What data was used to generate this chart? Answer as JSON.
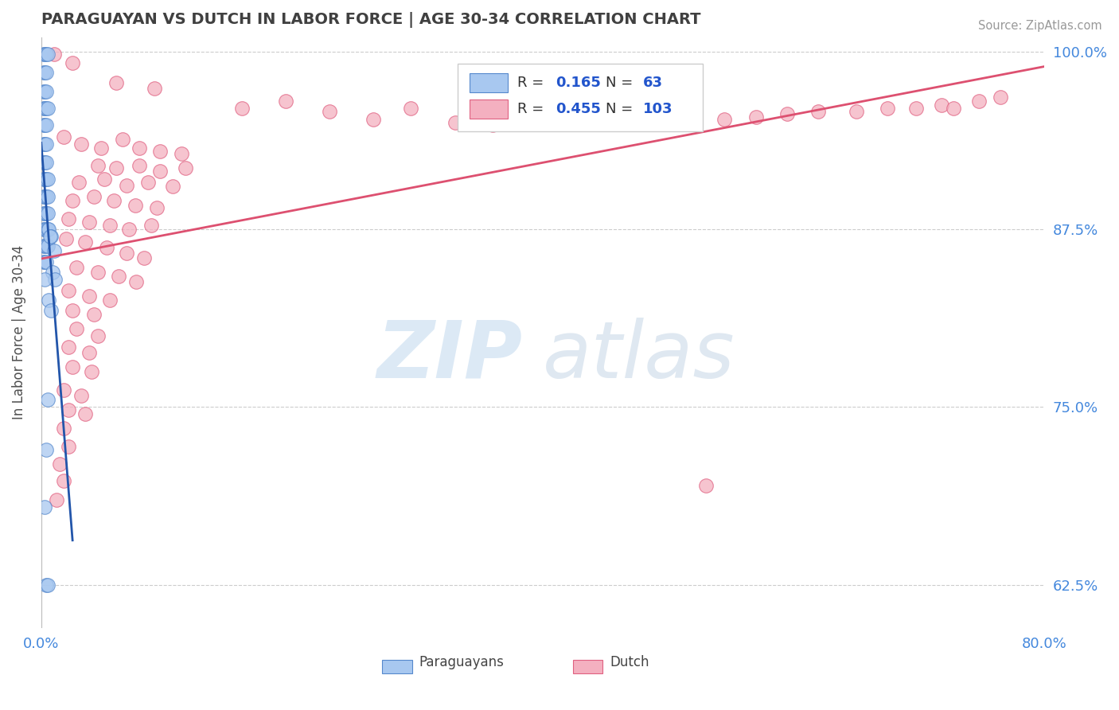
{
  "title": "PARAGUAYAN VS DUTCH IN LABOR FORCE | AGE 30-34 CORRELATION CHART",
  "source_text": "Source: ZipAtlas.com",
  "ylabel": "In Labor Force | Age 30-34",
  "xlim": [
    0.0,
    0.8
  ],
  "ylim": [
    0.595,
    1.01
  ],
  "xtick_labels": [
    "0.0%",
    "80.0%"
  ],
  "xtick_vals": [
    0.0,
    0.8
  ],
  "ytick_labels": [
    "62.5%",
    "75.0%",
    "87.5%",
    "100.0%"
  ],
  "ytick_vals": [
    0.625,
    0.75,
    0.875,
    1.0
  ],
  "blue_R": 0.165,
  "blue_N": 63,
  "pink_R": 0.455,
  "pink_N": 103,
  "blue_color": "#a8c8f0",
  "pink_color": "#f4b0c0",
  "blue_edge_color": "#5588cc",
  "pink_edge_color": "#e06080",
  "blue_line_color": "#2255aa",
  "pink_line_color": "#dd5070",
  "legend_blue_label": "Paraguayans",
  "legend_pink_label": "Dutch",
  "blue_scatter": [
    [
      0.002,
      0.998
    ],
    [
      0.003,
      0.998
    ],
    [
      0.004,
      0.998
    ],
    [
      0.005,
      0.998
    ],
    [
      0.002,
      0.985
    ],
    [
      0.003,
      0.985
    ],
    [
      0.004,
      0.985
    ],
    [
      0.002,
      0.972
    ],
    [
      0.003,
      0.972
    ],
    [
      0.004,
      0.972
    ],
    [
      0.002,
      0.96
    ],
    [
      0.003,
      0.96
    ],
    [
      0.004,
      0.96
    ],
    [
      0.005,
      0.96
    ],
    [
      0.002,
      0.948
    ],
    [
      0.003,
      0.948
    ],
    [
      0.004,
      0.948
    ],
    [
      0.002,
      0.935
    ],
    [
      0.003,
      0.935
    ],
    [
      0.004,
      0.935
    ],
    [
      0.002,
      0.922
    ],
    [
      0.003,
      0.922
    ],
    [
      0.004,
      0.922
    ],
    [
      0.002,
      0.91
    ],
    [
      0.003,
      0.91
    ],
    [
      0.004,
      0.91
    ],
    [
      0.005,
      0.91
    ],
    [
      0.002,
      0.898
    ],
    [
      0.003,
      0.898
    ],
    [
      0.004,
      0.898
    ],
    [
      0.005,
      0.898
    ],
    [
      0.002,
      0.886
    ],
    [
      0.003,
      0.886
    ],
    [
      0.004,
      0.886
    ],
    [
      0.005,
      0.886
    ],
    [
      0.002,
      0.875
    ],
    [
      0.003,
      0.875
    ],
    [
      0.004,
      0.875
    ],
    [
      0.005,
      0.875
    ],
    [
      0.006,
      0.875
    ],
    [
      0.002,
      0.863
    ],
    [
      0.003,
      0.863
    ],
    [
      0.004,
      0.863
    ],
    [
      0.005,
      0.863
    ],
    [
      0.002,
      0.852
    ],
    [
      0.003,
      0.852
    ],
    [
      0.004,
      0.852
    ],
    [
      0.008,
      0.87
    ],
    [
      0.01,
      0.86
    ],
    [
      0.009,
      0.845
    ],
    [
      0.011,
      0.84
    ],
    [
      0.006,
      0.825
    ],
    [
      0.008,
      0.818
    ],
    [
      0.005,
      0.755
    ],
    [
      0.004,
      0.72
    ],
    [
      0.007,
      0.87
    ],
    [
      0.003,
      0.84
    ],
    [
      0.004,
      0.625
    ],
    [
      0.005,
      0.625
    ],
    [
      0.003,
      0.68
    ]
  ],
  "pink_scatter": [
    [
      0.01,
      0.998
    ],
    [
      0.025,
      0.992
    ],
    [
      0.06,
      0.978
    ],
    [
      0.09,
      0.974
    ],
    [
      0.16,
      0.96
    ],
    [
      0.195,
      0.965
    ],
    [
      0.23,
      0.958
    ],
    [
      0.265,
      0.952
    ],
    [
      0.295,
      0.96
    ],
    [
      0.33,
      0.95
    ],
    [
      0.36,
      0.948
    ],
    [
      0.385,
      0.952
    ],
    [
      0.42,
      0.95
    ],
    [
      0.455,
      0.952
    ],
    [
      0.49,
      0.954
    ],
    [
      0.52,
      0.956
    ],
    [
      0.545,
      0.952
    ],
    [
      0.57,
      0.954
    ],
    [
      0.595,
      0.956
    ],
    [
      0.62,
      0.958
    ],
    [
      0.65,
      0.958
    ],
    [
      0.675,
      0.96
    ],
    [
      0.698,
      0.96
    ],
    [
      0.718,
      0.962
    ],
    [
      0.728,
      0.96
    ],
    [
      0.748,
      0.965
    ],
    [
      0.765,
      0.968
    ],
    [
      0.018,
      0.94
    ],
    [
      0.032,
      0.935
    ],
    [
      0.048,
      0.932
    ],
    [
      0.065,
      0.938
    ],
    [
      0.078,
      0.932
    ],
    [
      0.095,
      0.93
    ],
    [
      0.112,
      0.928
    ],
    [
      0.045,
      0.92
    ],
    [
      0.06,
      0.918
    ],
    [
      0.078,
      0.92
    ],
    [
      0.095,
      0.916
    ],
    [
      0.115,
      0.918
    ],
    [
      0.03,
      0.908
    ],
    [
      0.05,
      0.91
    ],
    [
      0.068,
      0.906
    ],
    [
      0.085,
      0.908
    ],
    [
      0.105,
      0.905
    ],
    [
      0.025,
      0.895
    ],
    [
      0.042,
      0.898
    ],
    [
      0.058,
      0.895
    ],
    [
      0.075,
      0.892
    ],
    [
      0.092,
      0.89
    ],
    [
      0.022,
      0.882
    ],
    [
      0.038,
      0.88
    ],
    [
      0.055,
      0.878
    ],
    [
      0.07,
      0.875
    ],
    [
      0.088,
      0.878
    ],
    [
      0.02,
      0.868
    ],
    [
      0.035,
      0.866
    ],
    [
      0.052,
      0.862
    ],
    [
      0.068,
      0.858
    ],
    [
      0.082,
      0.855
    ],
    [
      0.028,
      0.848
    ],
    [
      0.045,
      0.845
    ],
    [
      0.062,
      0.842
    ],
    [
      0.076,
      0.838
    ],
    [
      0.022,
      0.832
    ],
    [
      0.038,
      0.828
    ],
    [
      0.055,
      0.825
    ],
    [
      0.025,
      0.818
    ],
    [
      0.042,
      0.815
    ],
    [
      0.028,
      0.805
    ],
    [
      0.045,
      0.8
    ],
    [
      0.022,
      0.792
    ],
    [
      0.038,
      0.788
    ],
    [
      0.025,
      0.778
    ],
    [
      0.04,
      0.775
    ],
    [
      0.018,
      0.762
    ],
    [
      0.032,
      0.758
    ],
    [
      0.022,
      0.748
    ],
    [
      0.035,
      0.745
    ],
    [
      0.018,
      0.735
    ],
    [
      0.022,
      0.722
    ],
    [
      0.015,
      0.71
    ],
    [
      0.018,
      0.698
    ],
    [
      0.012,
      0.685
    ],
    [
      0.53,
      0.695
    ]
  ],
  "watermark_zip": "ZIP",
  "watermark_atlas": "atlas",
  "background_color": "#ffffff",
  "grid_color": "#cccccc",
  "title_color": "#404040",
  "axis_label_color": "#505050",
  "tick_color": "#4488dd"
}
